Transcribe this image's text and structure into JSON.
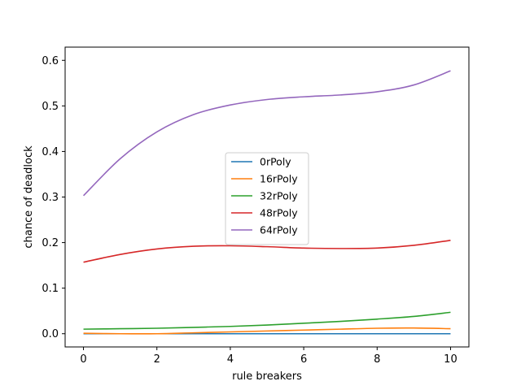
{
  "chart_data": {
    "type": "line",
    "xlabel": "rule breakers",
    "ylabel": "chance of deadlock",
    "xlim": [
      -0.5,
      10.5
    ],
    "ylim": [
      -0.029,
      0.629
    ],
    "xticks": [
      0,
      2,
      4,
      6,
      8,
      10
    ],
    "xtick_labels": [
      "0",
      "2",
      "4",
      "6",
      "8",
      "10"
    ],
    "yticks": [
      0.0,
      0.1,
      0.2,
      0.3,
      0.4,
      0.5,
      0.6
    ],
    "ytick_labels": [
      "0.0",
      "0.1",
      "0.2",
      "0.3",
      "0.4",
      "0.5",
      "0.6"
    ],
    "grid": false,
    "legend_position": "center",
    "x": [
      0,
      1,
      2,
      3,
      4,
      5,
      6,
      7,
      8,
      9,
      10
    ],
    "series": [
      {
        "name": "0rPoly",
        "color": "#1f77b4",
        "values": [
          0.0,
          0.0,
          0.0,
          0.0,
          0.0,
          0.0,
          0.0,
          0.0,
          0.0,
          0.0,
          0.0
        ]
      },
      {
        "name": "16rPoly",
        "color": "#ff7f0e",
        "values": [
          0.001,
          0.0,
          0.0,
          0.002,
          0.004,
          0.006,
          0.008,
          0.01,
          0.012,
          0.0125,
          0.011
        ]
      },
      {
        "name": "32rPoly",
        "color": "#2ca02c",
        "values": [
          0.01,
          0.011,
          0.012,
          0.014,
          0.016,
          0.019,
          0.023,
          0.027,
          0.032,
          0.038,
          0.047
        ]
      },
      {
        "name": "48rPoly",
        "color": "#d62728",
        "values": [
          0.157,
          0.174,
          0.186,
          0.192,
          0.193,
          0.191,
          0.188,
          0.187,
          0.188,
          0.194,
          0.205
        ]
      },
      {
        "name": "64rPoly",
        "color": "#9467bd",
        "values": [
          0.303,
          0.384,
          0.443,
          0.481,
          0.502,
          0.514,
          0.52,
          0.524,
          0.531,
          0.546,
          0.577
        ]
      }
    ]
  }
}
